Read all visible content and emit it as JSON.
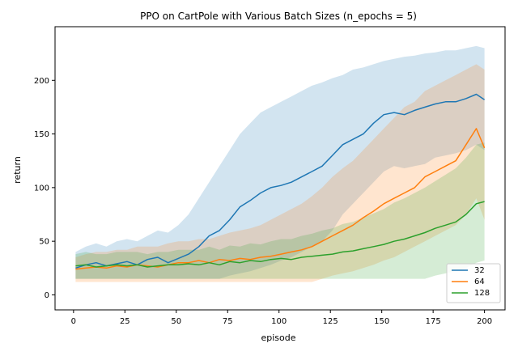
{
  "chart_data": {
    "type": "line",
    "title": "PPO on CartPole with Various Batch Sizes (n_epochs = 5)",
    "xlabel": "episode",
    "ylabel": "return",
    "xlim": [
      -9,
      210
    ],
    "ylim": [
      -14,
      250
    ],
    "xticks": [
      0,
      25,
      50,
      75,
      100,
      125,
      150,
      175,
      200
    ],
    "yticks": [
      0,
      50,
      100,
      150,
      200
    ],
    "grid": false,
    "legend_position": "lower-right",
    "x": [
      1,
      6,
      11,
      16,
      21,
      26,
      31,
      36,
      41,
      46,
      51,
      56,
      61,
      66,
      71,
      76,
      81,
      86,
      91,
      96,
      101,
      106,
      111,
      116,
      121,
      126,
      131,
      136,
      141,
      146,
      151,
      156,
      161,
      166,
      171,
      176,
      181,
      186,
      191,
      196,
      200
    ],
    "series": [
      {
        "name": "32",
        "color": "#1f77b4",
        "values": [
          25,
          28,
          30,
          27,
          29,
          31,
          28,
          33,
          35,
          30,
          34,
          38,
          45,
          55,
          60,
          70,
          82,
          88,
          95,
          100,
          102,
          105,
          110,
          115,
          120,
          130,
          140,
          145,
          150,
          160,
          168,
          170,
          168,
          172,
          175,
          178,
          180,
          180,
          183,
          187,
          182
        ],
        "band_upper": [
          40,
          45,
          48,
          45,
          50,
          52,
          50,
          55,
          60,
          58,
          65,
          75,
          90,
          105,
          120,
          135,
          150,
          160,
          170,
          175,
          180,
          185,
          190,
          195,
          198,
          202,
          205,
          210,
          212,
          215,
          218,
          220,
          222,
          223,
          225,
          226,
          228,
          228,
          230,
          232,
          230
        ],
        "band_lower": [
          15,
          15,
          15,
          15,
          15,
          15,
          15,
          15,
          15,
          15,
          15,
          15,
          15,
          15,
          15,
          18,
          20,
          22,
          25,
          28,
          32,
          35,
          40,
          45,
          50,
          60,
          75,
          85,
          95,
          105,
          115,
          120,
          118,
          120,
          122,
          128,
          130,
          132,
          135,
          140,
          135
        ]
      },
      {
        "name": "64",
        "color": "#ff7f0e",
        "values": [
          24,
          25,
          26,
          25,
          27,
          26,
          28,
          27,
          26,
          28,
          30,
          30,
          32,
          30,
          33,
          32,
          34,
          33,
          35,
          36,
          38,
          40,
          42,
          45,
          50,
          55,
          60,
          65,
          72,
          78,
          85,
          90,
          95,
          100,
          110,
          115,
          120,
          125,
          140,
          155,
          137
        ],
        "band_upper": [
          35,
          38,
          40,
          40,
          42,
          42,
          45,
          45,
          45,
          48,
          50,
          50,
          52,
          52,
          55,
          58,
          60,
          62,
          65,
          70,
          75,
          80,
          85,
          92,
          100,
          110,
          118,
          125,
          135,
          145,
          155,
          165,
          175,
          180,
          190,
          195,
          200,
          205,
          210,
          215,
          210
        ],
        "band_lower": [
          12,
          12,
          12,
          12,
          12,
          12,
          12,
          12,
          12,
          12,
          12,
          12,
          12,
          12,
          12,
          12,
          12,
          12,
          12,
          12,
          12,
          12,
          12,
          12,
          15,
          18,
          20,
          22,
          25,
          28,
          32,
          35,
          40,
          45,
          50,
          55,
          60,
          65,
          75,
          90,
          70
        ]
      },
      {
        "name": "128",
        "color": "#2ca02c",
        "values": [
          27,
          28,
          26,
          27,
          28,
          27,
          28,
          26,
          27,
          28,
          28,
          29,
          28,
          30,
          28,
          31,
          30,
          32,
          31,
          33,
          34,
          33,
          35,
          36,
          37,
          38,
          40,
          41,
          43,
          45,
          47,
          50,
          52,
          55,
          58,
          62,
          65,
          68,
          75,
          85,
          87
        ],
        "band_upper": [
          38,
          40,
          38,
          38,
          40,
          40,
          40,
          38,
          40,
          40,
          42,
          42,
          42,
          45,
          42,
          46,
          45,
          48,
          47,
          50,
          52,
          52,
          55,
          57,
          60,
          62,
          66,
          68,
          72,
          76,
          80,
          86,
          90,
          95,
          100,
          106,
          112,
          118,
          128,
          140,
          142
        ],
        "band_lower": [
          15,
          15,
          15,
          15,
          15,
          15,
          15,
          15,
          15,
          15,
          15,
          15,
          15,
          15,
          15,
          15,
          15,
          15,
          15,
          15,
          15,
          15,
          15,
          15,
          15,
          15,
          15,
          15,
          15,
          15,
          15,
          15,
          15,
          15,
          15,
          18,
          20,
          22,
          25,
          30,
          32
        ]
      }
    ]
  }
}
